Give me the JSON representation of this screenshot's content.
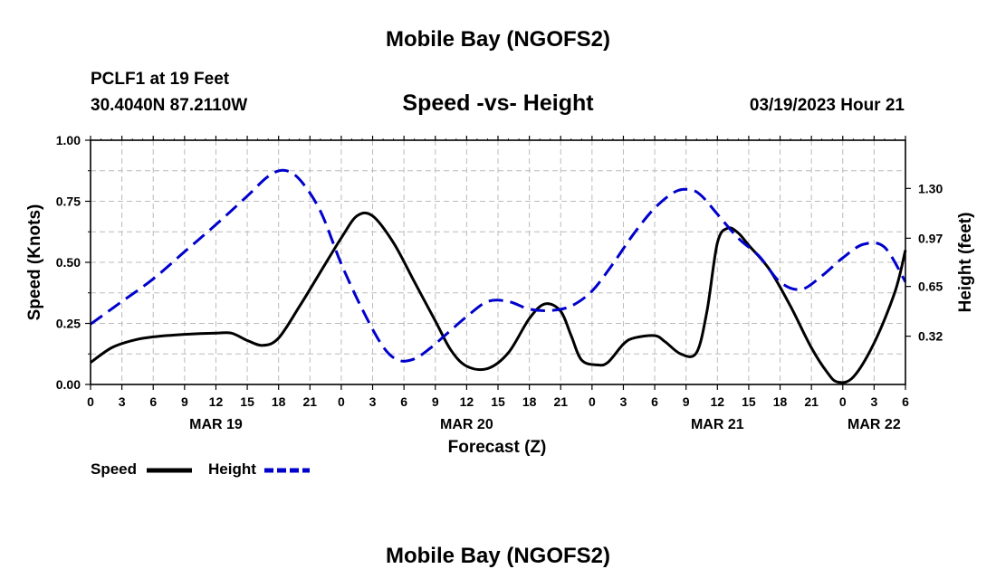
{
  "chart_data": {
    "type": "line",
    "title": "Mobile Bay (NGOFS2)",
    "footer_title": "Mobile Bay (NGOFS2)",
    "station": "PCLF1 at 19 Feet",
    "location": "30.4040N  87.2110W",
    "subtitle": "Speed -vs- Height",
    "datetime": "03/19/2023 Hour 21",
    "xlabel": "Forecast (Z)",
    "ylabel_left": "Speed (Knots)",
    "ylabel_right": "Height (feet)",
    "x_range_hours": [
      0,
      78
    ],
    "ylim_left": [
      0,
      1.0
    ],
    "ylim_right": [
      0,
      1.62
    ],
    "grid": true,
    "x_tick_labels": [
      "0",
      "3",
      "6",
      "9",
      "12",
      "15",
      "18",
      "21",
      "0",
      "3",
      "6",
      "9",
      "12",
      "15",
      "18",
      "21",
      "0",
      "3",
      "6",
      "9",
      "12",
      "15",
      "18",
      "21",
      "0",
      "3",
      "6"
    ],
    "date_labels": [
      {
        "hour": 12,
        "label": "MAR 19"
      },
      {
        "hour": 36,
        "label": "MAR 20"
      },
      {
        "hour": 60,
        "label": "MAR 21"
      },
      {
        "hour": 75,
        "label": "MAR 22"
      }
    ],
    "y_left_ticks": [
      "0.00",
      "0.25",
      "0.50",
      "0.75",
      "1.00"
    ],
    "y_right_ticks": [
      "0.32",
      "0.65",
      "0.97",
      "1.30"
    ],
    "series": [
      {
        "name": "Speed",
        "axis": "left",
        "color": "#000000",
        "style": "solid",
        "x": [
          0,
          2,
          4,
          6,
          9,
          12,
          13.5,
          15,
          16.5,
          18,
          20,
          22,
          24,
          25.5,
          27,
          29,
          31,
          33,
          34.5,
          36,
          38,
          40,
          42,
          43.5,
          45,
          46,
          47,
          48.5,
          49.5,
          51,
          52,
          54,
          55,
          56.5,
          58,
          59,
          60,
          61,
          62,
          63,
          65,
          67,
          69,
          70.5,
          71.5,
          73,
          75,
          77,
          78
        ],
        "values": [
          0.09,
          0.15,
          0.18,
          0.195,
          0.205,
          0.21,
          0.21,
          0.18,
          0.16,
          0.19,
          0.32,
          0.46,
          0.6,
          0.69,
          0.69,
          0.58,
          0.42,
          0.26,
          0.14,
          0.075,
          0.065,
          0.13,
          0.27,
          0.33,
          0.3,
          0.2,
          0.1,
          0.08,
          0.09,
          0.165,
          0.19,
          0.2,
          0.175,
          0.125,
          0.13,
          0.3,
          0.58,
          0.64,
          0.62,
          0.57,
          0.47,
          0.32,
          0.15,
          0.05,
          0.01,
          0.03,
          0.17,
          0.38,
          0.55
        ]
      },
      {
        "name": "Height",
        "axis": "right",
        "color": "#0000cc",
        "style": "dashed",
        "x": [
          0,
          3,
          6,
          9,
          12,
          15,
          17,
          18.5,
          20,
          22,
          24,
          26,
          28,
          29.5,
          31,
          32.5,
          34,
          36,
          38,
          40,
          42,
          44,
          46,
          48,
          50,
          52,
          54,
          56,
          57.5,
          58.5,
          60,
          62,
          64,
          66,
          68,
          70,
          72,
          74,
          76,
          78
        ],
        "values": [
          0.4,
          0.55,
          0.7,
          0.88,
          1.06,
          1.25,
          1.38,
          1.42,
          1.36,
          1.15,
          0.8,
          0.5,
          0.25,
          0.16,
          0.17,
          0.24,
          0.33,
          0.45,
          0.55,
          0.55,
          0.5,
          0.49,
          0.52,
          0.62,
          0.8,
          1.0,
          1.17,
          1.28,
          1.29,
          1.25,
          1.13,
          0.97,
          0.85,
          0.68,
          0.63,
          0.72,
          0.84,
          0.93,
          0.91,
          0.68
        ]
      }
    ]
  }
}
